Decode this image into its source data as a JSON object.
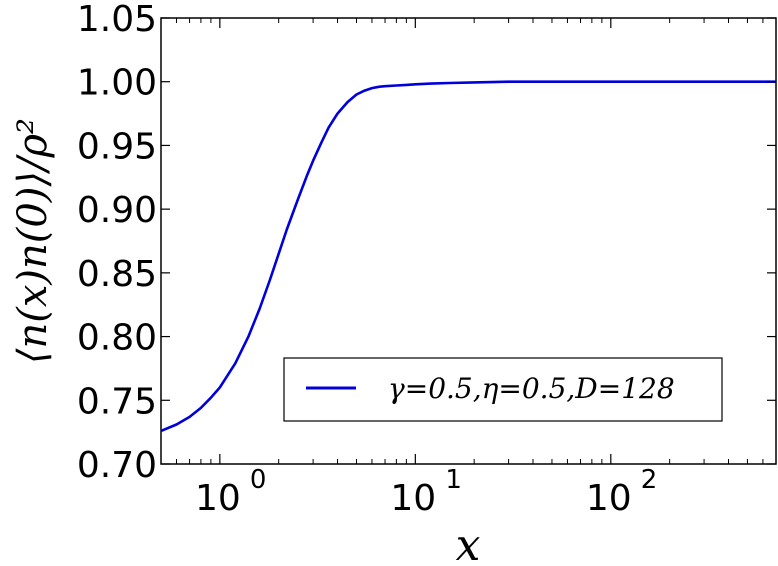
{
  "chart_data": {
    "type": "line",
    "title": "",
    "xlabel": "x",
    "ylabel": "⟨n(x)n(0)⟩/ρ²",
    "xscale": "log",
    "xlim": [
      0.5,
      700
    ],
    "ylim": [
      0.7,
      1.05
    ],
    "yticks": [
      "0.70",
      "0.75",
      "0.80",
      "0.85",
      "0.90",
      "0.95",
      "1.00",
      "1.05"
    ],
    "xticks": [
      {
        "value": 1,
        "base": "10",
        "exp": "0"
      },
      {
        "value": 10,
        "base": "10",
        "exp": "1"
      },
      {
        "value": 100,
        "base": "10",
        "exp": "2"
      }
    ],
    "grid": false,
    "legend_position": "lower-right",
    "series": [
      {
        "name": "γ=0.5,η=0.5,D=128",
        "color": "#0000dd",
        "x": [
          0.5,
          0.6,
          0.7,
          0.8,
          0.9,
          1.0,
          1.2,
          1.4,
          1.6,
          1.8,
          2.0,
          2.2,
          2.5,
          2.8,
          3.0,
          3.3,
          3.6,
          4.0,
          4.5,
          5.0,
          5.5,
          6.0,
          6.5,
          7.0,
          8.0,
          9.0,
          10,
          12,
          15,
          20,
          30,
          50,
          100,
          200,
          400,
          700
        ],
        "y": [
          0.726,
          0.731,
          0.737,
          0.744,
          0.752,
          0.76,
          0.779,
          0.8,
          0.822,
          0.844,
          0.865,
          0.884,
          0.907,
          0.927,
          0.938,
          0.952,
          0.964,
          0.975,
          0.984,
          0.99,
          0.993,
          0.995,
          0.996,
          0.9965,
          0.997,
          0.9975,
          0.998,
          0.9985,
          0.999,
          0.9995,
          1.0,
          1.0,
          1.0,
          1.0,
          1.0,
          1.0
        ]
      }
    ]
  }
}
